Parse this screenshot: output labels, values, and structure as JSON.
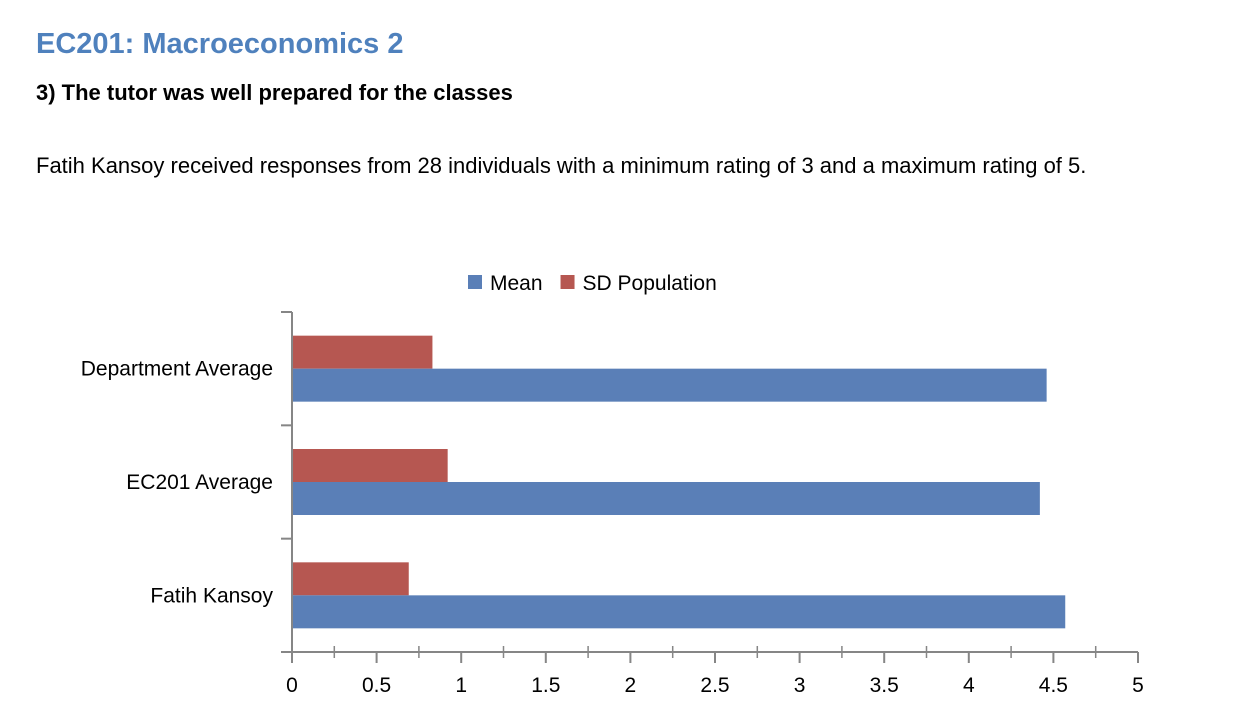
{
  "page": {
    "course_title": "EC201: Macroeconomics 2",
    "question": "3) The tutor was well prepared for the classes",
    "summary": "Fatih Kansoy received responses from 28 individuals with a minimum rating of 3 and a maximum rating of 5."
  },
  "chart_data": {
    "type": "bar",
    "orientation": "horizontal",
    "title": "",
    "xlabel": "",
    "ylabel": "",
    "categories": [
      "Department Average",
      "EC201 Average",
      "Fatih Kansoy"
    ],
    "series": [
      {
        "name": "Mean",
        "values": [
          4.46,
          4.42,
          4.57
        ],
        "color": "#5a7fb7"
      },
      {
        "name": "SD Population",
        "values": [
          0.83,
          0.92,
          0.69
        ],
        "color": "#b65751"
      }
    ],
    "xlim": [
      0,
      5
    ],
    "xticks": [
      0,
      0.5,
      1,
      1.5,
      2,
      2.5,
      3,
      3.5,
      4,
      4.5,
      5
    ],
    "xtick_labels": [
      "0",
      "0.5",
      "1",
      "1.5",
      "2",
      "2.5",
      "3",
      "3.5",
      "4",
      "4.5",
      "5"
    ],
    "legend": "top",
    "grid": false
  }
}
